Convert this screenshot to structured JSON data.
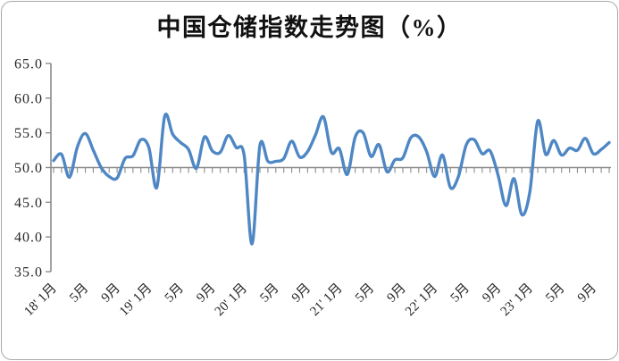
{
  "page": {
    "background_color": "#ffffff",
    "frame_border_color": "#a9a9a9"
  },
  "chart_data": {
    "type": "line",
    "title": "中国仓储指数走势图（%）",
    "series_name": "中国仓储指数",
    "unit": "%",
    "grid": false,
    "legend_position": "none",
    "ylim": [
      35.0,
      65.0
    ],
    "y_tick_step": 5.0,
    "baseline": 50.0,
    "y_tick_labels": [
      "65.0",
      "60.0",
      "55.0",
      "50.0",
      "45.0",
      "40.0",
      "35.0"
    ],
    "x_tick_labels": [
      {
        "index": 0,
        "label": "18' 1月"
      },
      {
        "index": 4,
        "label": "5月"
      },
      {
        "index": 8,
        "label": "9月"
      },
      {
        "index": 12,
        "label": "19' 1月"
      },
      {
        "index": 16,
        "label": "5月"
      },
      {
        "index": 20,
        "label": "9月"
      },
      {
        "index": 24,
        "label": "20' 1月"
      },
      {
        "index": 28,
        "label": "5月"
      },
      {
        "index": 32,
        "label": "9月"
      },
      {
        "index": 36,
        "label": "21' 1月"
      },
      {
        "index": 40,
        "label": "5月"
      },
      {
        "index": 44,
        "label": "9月"
      },
      {
        "index": 48,
        "label": "22' 1月"
      },
      {
        "index": 52,
        "label": "5月"
      },
      {
        "index": 56,
        "label": "9月"
      },
      {
        "index": 60,
        "label": "23' 1月"
      },
      {
        "index": 64,
        "label": "5月"
      },
      {
        "index": 68,
        "label": "9月"
      }
    ],
    "x": [
      "2018-01",
      "2018-02",
      "2018-03",
      "2018-04",
      "2018-05",
      "2018-06",
      "2018-07",
      "2018-08",
      "2018-09",
      "2018-10",
      "2018-11",
      "2018-12",
      "2019-01",
      "2019-02",
      "2019-03",
      "2019-04",
      "2019-05",
      "2019-06",
      "2019-07",
      "2019-08",
      "2019-09",
      "2019-10",
      "2019-11",
      "2019-12",
      "2020-01",
      "2020-02",
      "2020-03",
      "2020-04",
      "2020-05",
      "2020-06",
      "2020-07",
      "2020-08",
      "2020-09",
      "2020-10",
      "2020-11",
      "2020-12",
      "2021-01",
      "2021-02",
      "2021-03",
      "2021-04",
      "2021-05",
      "2021-06",
      "2021-07",
      "2021-08",
      "2021-09",
      "2021-10",
      "2021-11",
      "2021-12",
      "2022-01",
      "2022-02",
      "2022-03",
      "2022-04",
      "2022-05",
      "2022-06",
      "2022-07",
      "2022-08",
      "2022-09",
      "2022-10",
      "2022-11",
      "2022-12",
      "2023-01",
      "2023-02",
      "2023-03",
      "2023-04",
      "2023-05",
      "2023-06",
      "2023-07",
      "2023-08",
      "2023-09",
      "2023-10",
      "2023-11"
    ],
    "values": [
      51.0,
      51.9,
      48.6,
      53.0,
      54.9,
      52.5,
      50.0,
      48.7,
      48.5,
      51.3,
      51.7,
      54.0,
      52.9,
      47.1,
      57.4,
      54.8,
      53.6,
      52.6,
      49.9,
      54.4,
      52.4,
      52.2,
      54.6,
      52.9,
      51.8,
      39.0,
      53.2,
      50.9,
      50.9,
      51.3,
      53.8,
      51.5,
      52.3,
      54.7,
      57.3,
      52.2,
      52.7,
      49.0,
      54.4,
      55.0,
      51.6,
      53.3,
      49.4,
      51.1,
      51.4,
      54.3,
      54.4,
      52.3,
      48.7,
      51.8,
      47.1,
      48.7,
      53.3,
      54.0,
      52.0,
      52.4,
      48.9,
      44.5,
      48.4,
      43.2,
      46.5,
      56.7,
      51.9,
      53.9,
      51.8,
      52.8,
      52.5,
      54.2,
      52.0,
      52.6,
      53.6
    ],
    "line_color": "#4e87c4",
    "axis_color": "#8c8c8c",
    "label_color": "#262626"
  }
}
